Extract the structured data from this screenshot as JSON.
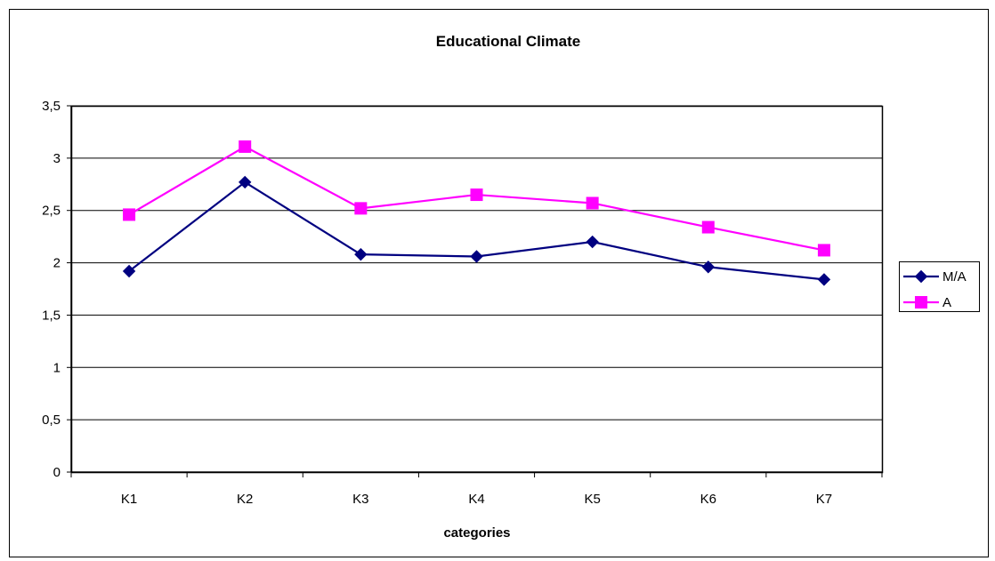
{
  "chart_data": {
    "type": "line",
    "title": "Educational Climate",
    "xlabel": "categories",
    "ylabel": "",
    "categories": [
      "K1",
      "K2",
      "K3",
      "K4",
      "K5",
      "K6",
      "K7"
    ],
    "ylim": [
      0,
      3.5
    ],
    "yticks": [
      "0",
      "0,5",
      "1",
      "1,5",
      "2",
      "2,5",
      "3",
      "3,5"
    ],
    "ytick_values": [
      0,
      0.5,
      1,
      1.5,
      2,
      2.5,
      3,
      3.5
    ],
    "grid": true,
    "legend_position": "right",
    "series": [
      {
        "name": "M/A",
        "color": "#000080",
        "marker": "diamond",
        "values": [
          1.92,
          2.77,
          2.08,
          2.06,
          2.2,
          1.96,
          1.84
        ]
      },
      {
        "name": "A",
        "color": "#FF00FF",
        "marker": "square",
        "values": [
          2.46,
          3.11,
          2.52,
          2.65,
          2.57,
          2.34,
          2.12
        ]
      }
    ]
  }
}
